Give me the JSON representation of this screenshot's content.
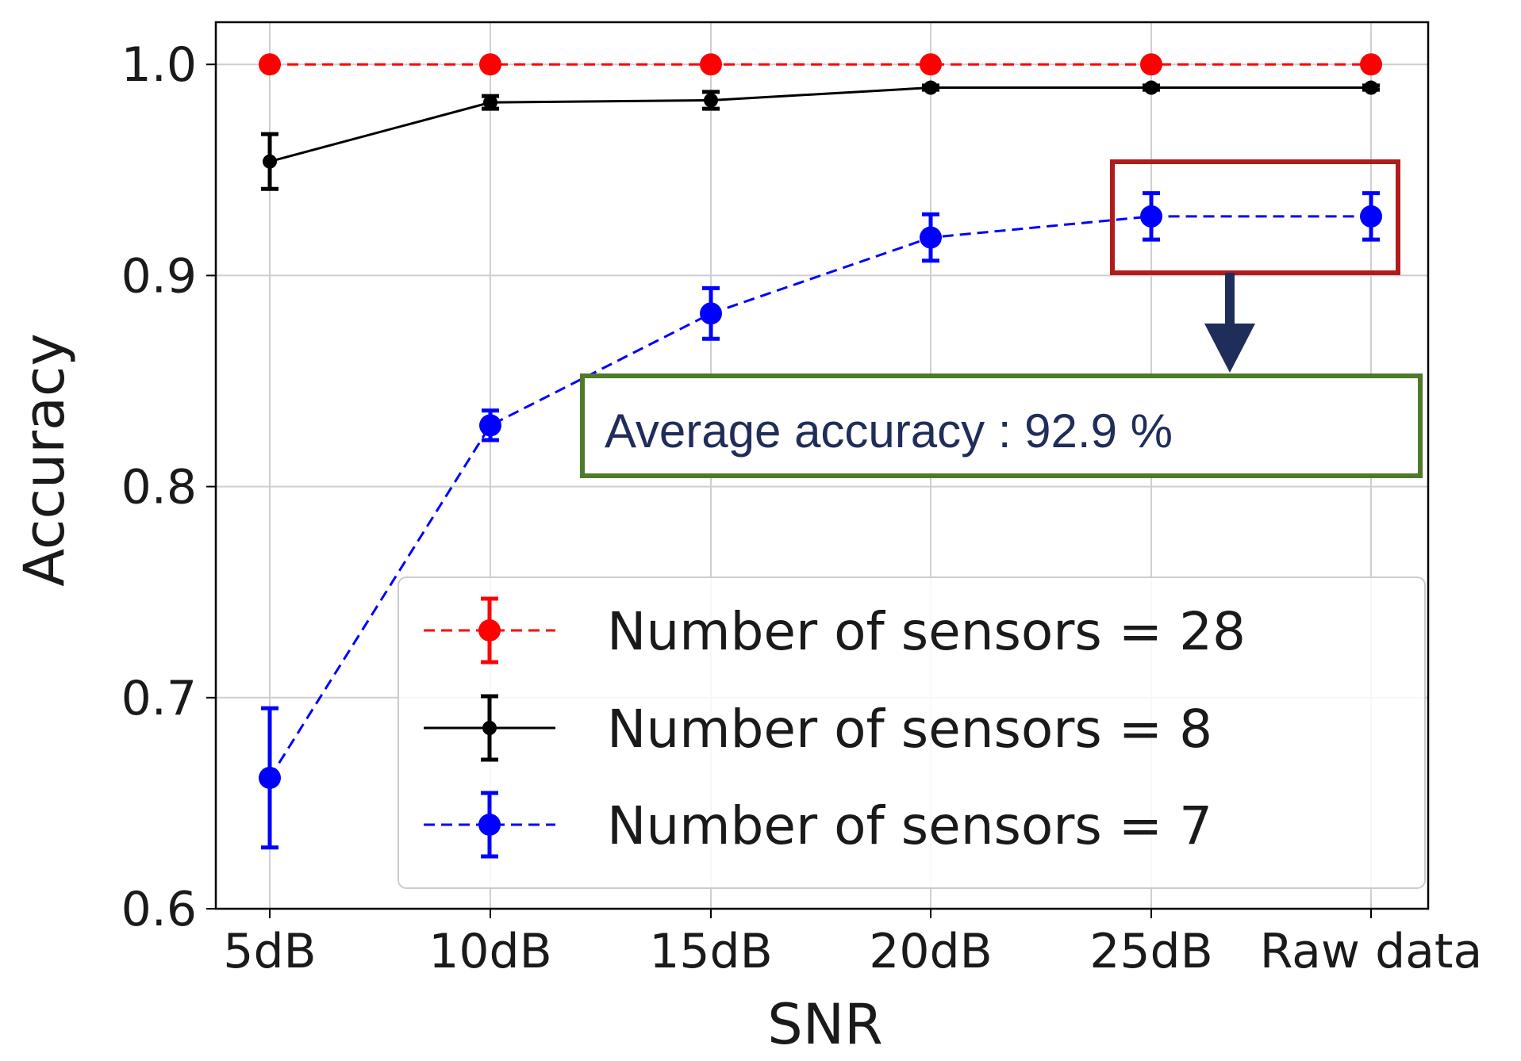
{
  "chart_data": {
    "type": "line",
    "xlabel": "SNR",
    "ylabel": "Accuracy",
    "categories": [
      "5dB",
      "10dB",
      "15dB",
      "20dB",
      "25dB",
      "Raw data"
    ],
    "ylim": [
      0.6,
      1.02
    ],
    "yticks": [
      "0.6",
      "0.7",
      "0.8",
      "0.9",
      "1.0"
    ],
    "grid": true,
    "legend_position": "bottom-right",
    "series": [
      {
        "name": "Number of sensors = 28",
        "color": "#ff0000",
        "line_style": "dashed",
        "values": [
          1.0,
          1.0,
          1.0,
          1.0,
          1.0,
          1.0
        ],
        "errors": [
          0.0,
          0.0,
          0.0,
          0.0,
          0.0,
          0.0
        ]
      },
      {
        "name": "Number of sensors = 8",
        "color": "#000000",
        "line_style": "solid",
        "values": [
          0.954,
          0.982,
          0.983,
          0.989,
          0.989,
          0.989
        ],
        "errors": [
          0.013,
          0.003,
          0.004,
          0.001,
          0.001,
          0.001
        ]
      },
      {
        "name": "Number of sensors = 7",
        "color": "#0000ff",
        "line_style": "dashed",
        "values": [
          0.662,
          0.829,
          0.882,
          0.918,
          0.928,
          0.928
        ],
        "errors": [
          0.033,
          0.007,
          0.012,
          0.011,
          0.011,
          0.011
        ]
      }
    ],
    "annotation": {
      "text": "Average accuracy : 92.9 %",
      "highlight_color": "#b01c1c",
      "box_color": "#4e7a2a",
      "arrow_color": "#1f2d5a"
    }
  }
}
